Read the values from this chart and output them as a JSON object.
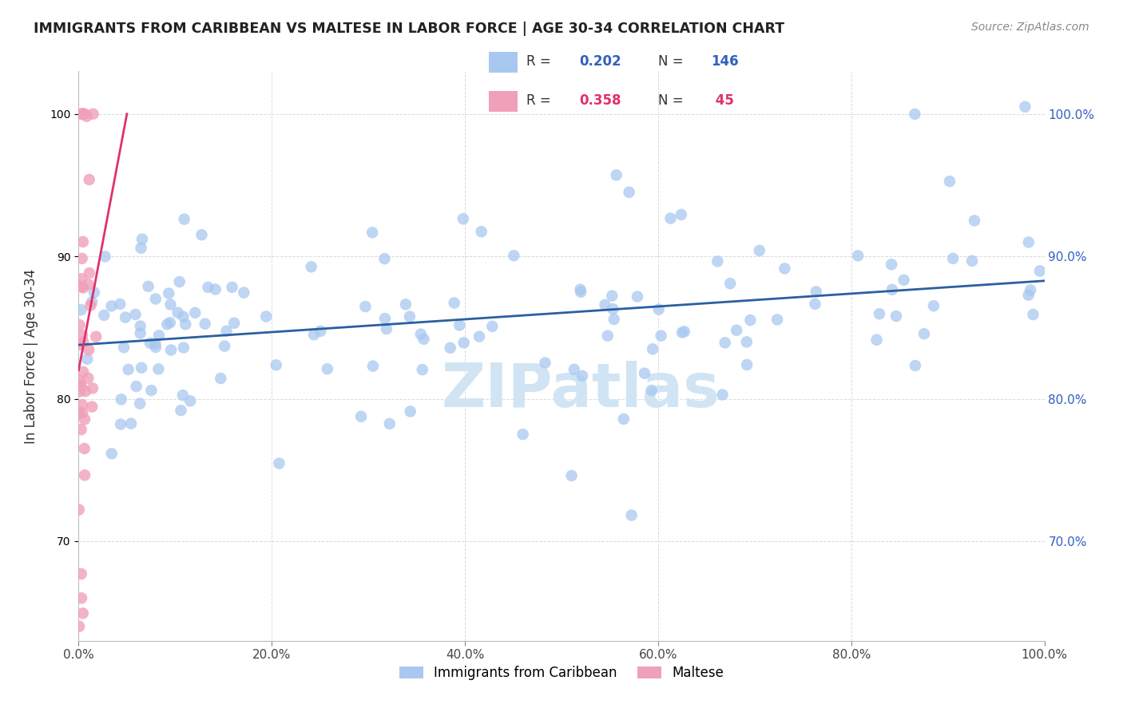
{
  "title": "IMMIGRANTS FROM CARIBBEAN VS MALTESE IN LABOR FORCE | AGE 30-34 CORRELATION CHART",
  "source": "Source: ZipAtlas.com",
  "ylabel": "In Labor Force | Age 30-34",
  "xlim": [
    0.0,
    100.0
  ],
  "ylim": [
    63.0,
    103.0
  ],
  "blue_R": 0.202,
  "blue_N": 146,
  "pink_R": 0.358,
  "pink_N": 45,
  "blue_color": "#A8C8F0",
  "blue_line_color": "#2B5FA0",
  "pink_color": "#F0A0B8",
  "pink_line_color": "#E03070",
  "watermark_color": "#D0E4F4",
  "background_color": "#FFFFFF",
  "grid_color": "#CCCCCC",
  "title_color": "#222222",
  "right_axis_color": "#3060C0",
  "legend_r_color": "#3060C0",
  "legend_r_pink_color": "#E03070",
  "legend_n_color": "#3060C0",
  "legend_n_pink_color": "#E03070"
}
